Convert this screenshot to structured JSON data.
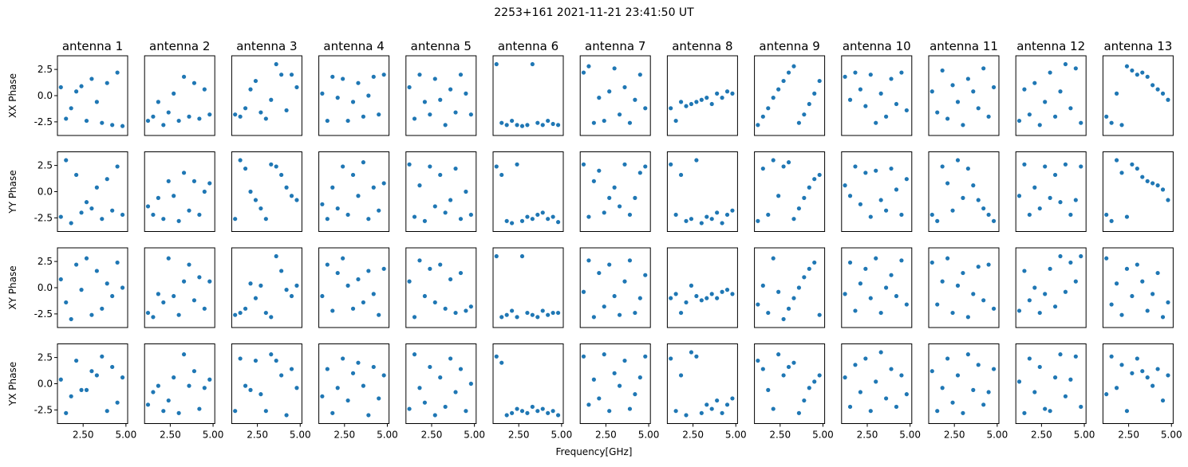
{
  "figure": {
    "title": "2253+161 2021-11-21 23:41:50 UT",
    "xlabel": "Frequency[GHz]"
  },
  "chart_data": {
    "type": "scatter",
    "layout": "grid of small multiples, 4 rows x 13 columns",
    "title": "2253+161 2021-11-21 23:41:50 UT",
    "xlabel": "Frequency[GHz]",
    "x_range": [
      1.0,
      5.1
    ],
    "y_range": [
      -3.8,
      3.8
    ],
    "x_ticks": [
      2.5,
      5.0
    ],
    "x_tick_labels": [
      "2.50",
      "5.00"
    ],
    "y_ticks": [
      -2.5,
      0.0,
      2.5
    ],
    "y_tick_labels": [
      "-2.5",
      "0.0",
      "2.5"
    ],
    "marker_color": "#1f77b4",
    "column_titles": [
      "antenna 1",
      "antenna 2",
      "antenna 3",
      "antenna 4",
      "antenna 5",
      "antenna 6",
      "antenna 7",
      "antenna 8",
      "antenna 9",
      "antenna 10",
      "antenna 11",
      "antenna 12",
      "antenna 13"
    ],
    "row_labels": [
      "XX Phase",
      "YY Phase",
      "XY Phase",
      "YX Phase"
    ],
    "panel_x": [
      1.2,
      1.5,
      1.8,
      2.1,
      2.4,
      2.7,
      3.0,
      3.3,
      3.6,
      3.9,
      4.2,
      4.5,
      4.8
    ],
    "panels": [
      {
        "row": "XX Phase",
        "antenna": "antenna 1",
        "y": [
          0.8,
          -2.2,
          -1.2,
          0.4,
          0.9,
          -2.4,
          1.6,
          -0.6,
          -2.6,
          1.2,
          -2.8,
          2.2,
          -2.9
        ]
      },
      {
        "row": "XX Phase",
        "antenna": "antenna 2",
        "y": [
          -2.4,
          -2.0,
          -0.6,
          -2.8,
          -1.6,
          0.2,
          -2.4,
          1.8,
          -2.0,
          1.2,
          -2.2,
          0.6,
          -1.8
        ]
      },
      {
        "row": "XX Phase",
        "antenna": "antenna 3",
        "y": [
          -1.8,
          -2.0,
          -1.2,
          0.6,
          1.4,
          -1.6,
          -2.2,
          -0.4,
          3.0,
          2.0,
          -1.4,
          2.0,
          0.8
        ]
      },
      {
        "row": "XX Phase",
        "antenna": "antenna 4",
        "y": [
          0.2,
          -2.4,
          1.8,
          -0.2,
          1.6,
          -2.4,
          -0.6,
          1.2,
          -2.0,
          0.0,
          1.8,
          -1.8,
          2.0
        ]
      },
      {
        "row": "XX Phase",
        "antenna": "antenna 5",
        "y": [
          0.8,
          -2.2,
          2.0,
          -0.6,
          -1.8,
          1.6,
          -0.4,
          -2.8,
          0.6,
          -1.6,
          2.0,
          0.2,
          -1.8
        ]
      },
      {
        "row": "XX Phase",
        "antenna": "antenna 6",
        "y": [
          3.0,
          -2.6,
          -2.8,
          -2.4,
          -2.8,
          -2.9,
          -2.8,
          3.0,
          -2.6,
          -2.8,
          -2.4,
          -2.7,
          -2.8
        ]
      },
      {
        "row": "XX Phase",
        "antenna": "antenna 7",
        "y": [
          2.2,
          2.8,
          -2.6,
          -0.2,
          -2.4,
          0.4,
          2.6,
          -1.8,
          0.8,
          -2.6,
          -0.4,
          2.0,
          -1.2
        ]
      },
      {
        "row": "XX Phase",
        "antenna": "antenna 8",
        "y": [
          -1.2,
          -2.4,
          -0.6,
          -1.0,
          -0.8,
          -0.6,
          -0.4,
          -0.2,
          -0.8,
          0.2,
          -0.2,
          0.4,
          0.2
        ]
      },
      {
        "row": "XX Phase",
        "antenna": "antenna 9",
        "y": [
          -2.8,
          -2.0,
          -1.2,
          -0.2,
          0.6,
          1.4,
          2.2,
          2.8,
          -2.6,
          -1.8,
          -0.8,
          0.2,
          1.4
        ]
      },
      {
        "row": "XX Phase",
        "antenna": "antenna 10",
        "y": [
          1.8,
          -0.4,
          2.2,
          0.6,
          -1.0,
          2.0,
          -2.6,
          0.2,
          -2.0,
          1.6,
          -0.8,
          2.2,
          -1.4
        ]
      },
      {
        "row": "XX Phase",
        "antenna": "antenna 11",
        "y": [
          0.4,
          -1.6,
          2.4,
          -2.2,
          1.0,
          -0.6,
          -2.8,
          1.6,
          0.4,
          -1.2,
          2.6,
          -2.0,
          0.8
        ]
      },
      {
        "row": "XX Phase",
        "antenna": "antenna 12",
        "y": [
          -2.4,
          0.6,
          -1.8,
          1.2,
          -2.8,
          -0.6,
          2.2,
          -2.0,
          0.4,
          3.0,
          -1.2,
          2.6,
          -2.6
        ]
      },
      {
        "row": "XX Phase",
        "antenna": "antenna 13",
        "y": [
          -2.0,
          -2.6,
          0.2,
          -2.8,
          2.8,
          2.4,
          2.0,
          2.2,
          1.8,
          1.0,
          0.6,
          0.2,
          -0.4
        ]
      },
      {
        "row": "YY Phase",
        "antenna": "antenna 1",
        "y": [
          -2.4,
          3.0,
          -3.0,
          1.6,
          -2.0,
          -1.0,
          -1.6,
          0.4,
          -2.6,
          1.2,
          -1.8,
          2.4,
          -2.2
        ]
      },
      {
        "row": "YY Phase",
        "antenna": "antenna 2",
        "y": [
          -1.4,
          -2.2,
          -0.6,
          -2.6,
          1.0,
          -0.4,
          -2.8,
          1.8,
          -1.8,
          1.0,
          -2.2,
          0.0,
          0.8
        ]
      },
      {
        "row": "YY Phase",
        "antenna": "antenna 3",
        "y": [
          -2.6,
          3.0,
          2.2,
          0.0,
          -0.8,
          -1.6,
          -2.6,
          2.6,
          2.4,
          1.6,
          0.4,
          -0.4,
          -0.8
        ]
      },
      {
        "row": "YY Phase",
        "antenna": "antenna 4",
        "y": [
          -1.2,
          -2.6,
          0.4,
          -1.6,
          2.4,
          -2.2,
          1.6,
          -0.4,
          2.8,
          -2.6,
          0.4,
          -1.8,
          0.8
        ]
      },
      {
        "row": "YY Phase",
        "antenna": "antenna 5",
        "y": [
          2.6,
          -2.4,
          0.6,
          -2.8,
          2.4,
          -1.4,
          1.6,
          -2.0,
          -0.8,
          2.2,
          -2.6,
          0.0,
          -2.2
        ]
      },
      {
        "row": "YY Phase",
        "antenna": "antenna 6",
        "y": [
          2.4,
          1.6,
          -2.8,
          -3.0,
          2.6,
          -2.8,
          -2.4,
          -2.6,
          -2.2,
          -2.0,
          -2.6,
          -2.4,
          -2.9
        ]
      },
      {
        "row": "YY Phase",
        "antenna": "antenna 7",
        "y": [
          2.6,
          -2.4,
          1.0,
          2.0,
          -2.0,
          -0.6,
          0.4,
          -1.4,
          2.6,
          -2.2,
          -0.6,
          1.8,
          2.4
        ]
      },
      {
        "row": "YY Phase",
        "antenna": "antenna 8",
        "y": [
          2.6,
          -2.2,
          1.6,
          -2.8,
          -2.6,
          3.0,
          -3.0,
          -2.4,
          -2.6,
          -2.0,
          -3.0,
          -2.2,
          -1.8
        ]
      },
      {
        "row": "YY Phase",
        "antenna": "antenna 9",
        "y": [
          -2.8,
          2.2,
          -2.2,
          3.0,
          -0.4,
          2.4,
          2.8,
          -2.6,
          -1.6,
          -0.6,
          0.4,
          1.2,
          1.6
        ]
      },
      {
        "row": "YY Phase",
        "antenna": "antenna 10",
        "y": [
          0.6,
          -0.4,
          2.4,
          -1.2,
          1.8,
          -2.4,
          2.0,
          -0.8,
          -1.8,
          2.2,
          0.2,
          -2.2,
          1.2
        ]
      },
      {
        "row": "YY Phase",
        "antenna": "antenna 11",
        "y": [
          -2.2,
          -2.8,
          2.4,
          0.8,
          -1.8,
          3.0,
          -0.6,
          2.2,
          0.6,
          -0.8,
          -1.6,
          -2.2,
          -2.8
        ]
      },
      {
        "row": "YY Phase",
        "antenna": "antenna 12",
        "y": [
          -0.4,
          2.6,
          -2.2,
          0.4,
          -1.6,
          2.4,
          -0.6,
          1.6,
          -1.0,
          2.6,
          -2.2,
          -0.8,
          2.4
        ]
      },
      {
        "row": "YY Phase",
        "antenna": "antenna 13",
        "y": [
          -2.2,
          -2.8,
          3.0,
          1.8,
          -2.4,
          2.6,
          2.2,
          1.4,
          1.0,
          0.8,
          0.6,
          0.2,
          -0.8
        ]
      },
      {
        "row": "XY Phase",
        "antenna": "antenna 1",
        "y": [
          0.8,
          -1.4,
          -3.0,
          2.2,
          -0.2,
          2.8,
          -2.6,
          1.6,
          -2.0,
          0.4,
          -0.8,
          2.4,
          0.0
        ]
      },
      {
        "row": "XY Phase",
        "antenna": "antenna 2",
        "y": [
          -2.4,
          -2.8,
          -0.6,
          -1.4,
          2.8,
          -0.8,
          -2.6,
          0.6,
          2.2,
          -1.2,
          1.0,
          -2.0,
          0.6
        ]
      },
      {
        "row": "XY Phase",
        "antenna": "antenna 3",
        "y": [
          -2.6,
          -2.4,
          -2.0,
          0.4,
          -1.0,
          0.2,
          -2.4,
          -2.8,
          3.0,
          1.6,
          -0.2,
          -0.8,
          0.2
        ]
      },
      {
        "row": "XY Phase",
        "antenna": "antenna 4",
        "y": [
          -0.8,
          2.2,
          -2.2,
          1.4,
          2.8,
          0.2,
          -2.0,
          0.8,
          -1.4,
          1.6,
          -0.6,
          -2.6,
          1.8
        ]
      },
      {
        "row": "XY Phase",
        "antenna": "antenna 5",
        "y": [
          0.6,
          -2.8,
          2.6,
          -0.8,
          1.8,
          -1.4,
          2.2,
          -2.0,
          0.8,
          -2.4,
          1.4,
          -2.2,
          -1.8
        ]
      },
      {
        "row": "XY Phase",
        "antenna": "antenna 6",
        "y": [
          3.0,
          -2.8,
          -2.6,
          -2.2,
          -2.8,
          3.0,
          -2.4,
          -2.6,
          -2.8,
          -2.2,
          -2.6,
          -2.4,
          -2.4
        ]
      },
      {
        "row": "XY Phase",
        "antenna": "antenna 7",
        "y": [
          -0.4,
          2.6,
          -2.8,
          1.4,
          -1.8,
          2.2,
          -0.8,
          -2.6,
          0.6,
          2.6,
          -2.4,
          -1.0,
          1.2
        ]
      },
      {
        "row": "XY Phase",
        "antenna": "antenna 8",
        "y": [
          -1.0,
          -0.6,
          -2.4,
          -1.4,
          0.2,
          -0.8,
          -1.2,
          -1.0,
          -0.6,
          -1.0,
          -0.4,
          -0.2,
          -0.6
        ]
      },
      {
        "row": "XY Phase",
        "antenna": "antenna 9",
        "y": [
          -1.6,
          0.2,
          -2.4,
          2.8,
          -0.4,
          -3.0,
          -2.0,
          -1.0,
          0.0,
          1.0,
          1.8,
          2.4,
          -2.6
        ]
      },
      {
        "row": "XY Phase",
        "antenna": "antenna 10",
        "y": [
          -0.6,
          2.4,
          -2.2,
          0.4,
          1.8,
          -1.0,
          2.8,
          -2.4,
          0.0,
          1.2,
          -0.8,
          2.6,
          -1.6
        ]
      },
      {
        "row": "XY Phase",
        "antenna": "antenna 11",
        "y": [
          2.4,
          -1.6,
          0.6,
          2.8,
          -2.4,
          0.2,
          1.4,
          -2.8,
          -0.6,
          2.0,
          -1.2,
          2.2,
          -2.0
        ]
      },
      {
        "row": "XY Phase",
        "antenna": "antenna 12",
        "y": [
          -2.2,
          1.6,
          -1.2,
          0.0,
          -2.4,
          -0.6,
          1.8,
          -1.8,
          3.0,
          -0.4,
          2.4,
          0.6,
          3.0
        ]
      },
      {
        "row": "XY Phase",
        "antenna": "antenna 13",
        "y": [
          2.8,
          -1.6,
          0.4,
          -2.6,
          1.8,
          -0.8,
          2.2,
          0.6,
          -2.2,
          -0.6,
          1.4,
          -2.8,
          -1.4
        ]
      },
      {
        "row": "YX Phase",
        "antenna": "antenna 1",
        "y": [
          0.4,
          -2.8,
          -1.2,
          2.2,
          -0.6,
          -0.6,
          1.2,
          0.8,
          2.6,
          -2.6,
          1.6,
          -1.8,
          0.6
        ]
      },
      {
        "row": "YX Phase",
        "antenna": "antenna 2",
        "y": [
          -2.0,
          -0.8,
          -0.2,
          -2.6,
          -1.6,
          0.6,
          -2.8,
          2.8,
          -0.2,
          1.2,
          -2.4,
          -0.4,
          0.4
        ]
      },
      {
        "row": "YX Phase",
        "antenna": "antenna 3",
        "y": [
          -2.6,
          2.4,
          -0.2,
          -0.6,
          2.2,
          -1.0,
          -2.6,
          2.8,
          2.2,
          0.8,
          -3.0,
          1.4,
          -0.4
        ]
      },
      {
        "row": "YX Phase",
        "antenna": "antenna 4",
        "y": [
          -1.2,
          1.4,
          -2.8,
          -0.4,
          2.4,
          -1.6,
          1.0,
          2.0,
          -0.2,
          -3.0,
          1.6,
          -1.4,
          0.8
        ]
      },
      {
        "row": "YX Phase",
        "antenna": "antenna 5",
        "y": [
          -2.4,
          2.8,
          -0.4,
          -1.8,
          1.6,
          -3.0,
          0.6,
          -2.2,
          2.4,
          -0.8,
          1.4,
          -2.6,
          0.0
        ]
      },
      {
        "row": "YX Phase",
        "antenna": "antenna 6",
        "y": [
          2.6,
          2.0,
          -3.0,
          -2.8,
          -2.4,
          -2.6,
          -2.8,
          -2.2,
          -2.6,
          -2.4,
          -2.8,
          -2.6,
          -3.0
        ]
      },
      {
        "row": "YX Phase",
        "antenna": "antenna 7",
        "y": [
          2.6,
          -2.0,
          0.4,
          -1.4,
          2.8,
          -2.6,
          1.0,
          -0.2,
          2.2,
          -2.4,
          -1.0,
          0.6,
          2.6
        ]
      },
      {
        "row": "YX Phase",
        "antenna": "antenna 8",
        "y": [
          2.4,
          -2.6,
          0.8,
          -3.0,
          3.0,
          2.6,
          -2.8,
          -2.0,
          -2.4,
          -1.6,
          -2.8,
          -2.0,
          -1.4
        ]
      },
      {
        "row": "YX Phase",
        "antenna": "antenna 9",
        "y": [
          2.2,
          1.4,
          -0.6,
          -2.4,
          2.8,
          0.8,
          1.6,
          2.0,
          -2.8,
          -1.6,
          -0.4,
          0.2,
          0.8
        ]
      },
      {
        "row": "YX Phase",
        "antenna": "antenna 10",
        "y": [
          0.6,
          -2.2,
          1.8,
          -0.8,
          2.4,
          -2.6,
          0.2,
          3.0,
          -1.4,
          1.4,
          -2.2,
          0.8,
          -1.0
        ]
      },
      {
        "row": "YX Phase",
        "antenna": "antenna 11",
        "y": [
          1.2,
          -2.6,
          -0.4,
          2.4,
          -1.8,
          0.8,
          -2.8,
          2.8,
          -0.6,
          1.8,
          -2.0,
          -0.8,
          1.4
        ]
      },
      {
        "row": "YX Phase",
        "antenna": "antenna 12",
        "y": [
          0.2,
          -2.8,
          2.4,
          -0.8,
          1.6,
          -2.4,
          -2.6,
          0.6,
          2.8,
          -1.2,
          0.4,
          2.6,
          -2.2
        ]
      },
      {
        "row": "YX Phase",
        "antenna": "antenna 13",
        "y": [
          -1.0,
          2.6,
          -0.4,
          1.8,
          -2.6,
          1.0,
          2.4,
          1.2,
          0.6,
          -0.2,
          1.4,
          -1.6,
          0.8
        ]
      }
    ]
  }
}
